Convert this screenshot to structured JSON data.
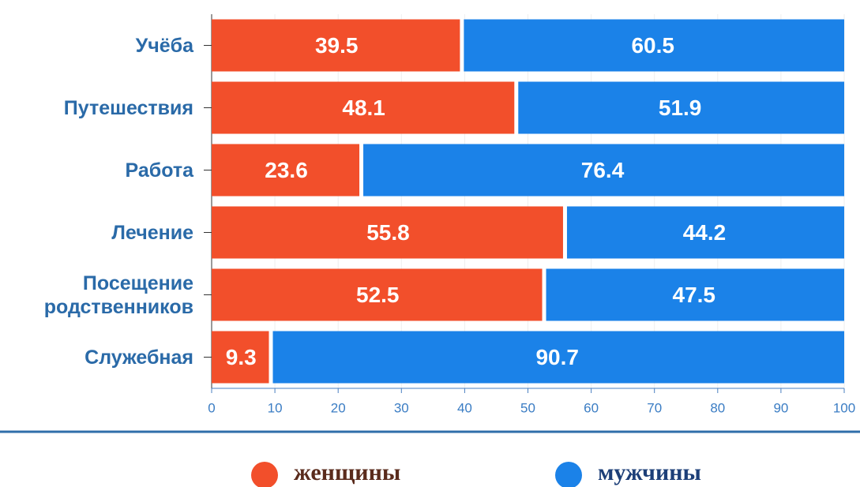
{
  "chart_data": {
    "type": "stacked-bar-horizontal",
    "categories": [
      "Учёба",
      "Путешествия",
      "Работа",
      "Лечение",
      "Посещение родственников",
      "Служебная"
    ],
    "series": [
      {
        "name": "женщины",
        "color": "#f24f2b",
        "values": [
          39.5,
          48.1,
          23.6,
          55.8,
          52.5,
          9.3
        ]
      },
      {
        "name": "мужчины",
        "color": "#1b82e8",
        "values": [
          60.5,
          51.9,
          76.4,
          44.2,
          47.5,
          90.7
        ]
      }
    ],
    "xlim": [
      0,
      100
    ],
    "xticks": [
      0,
      10,
      20,
      30,
      40,
      50,
      60,
      70,
      80,
      90,
      100
    ],
    "grid": true
  }
}
